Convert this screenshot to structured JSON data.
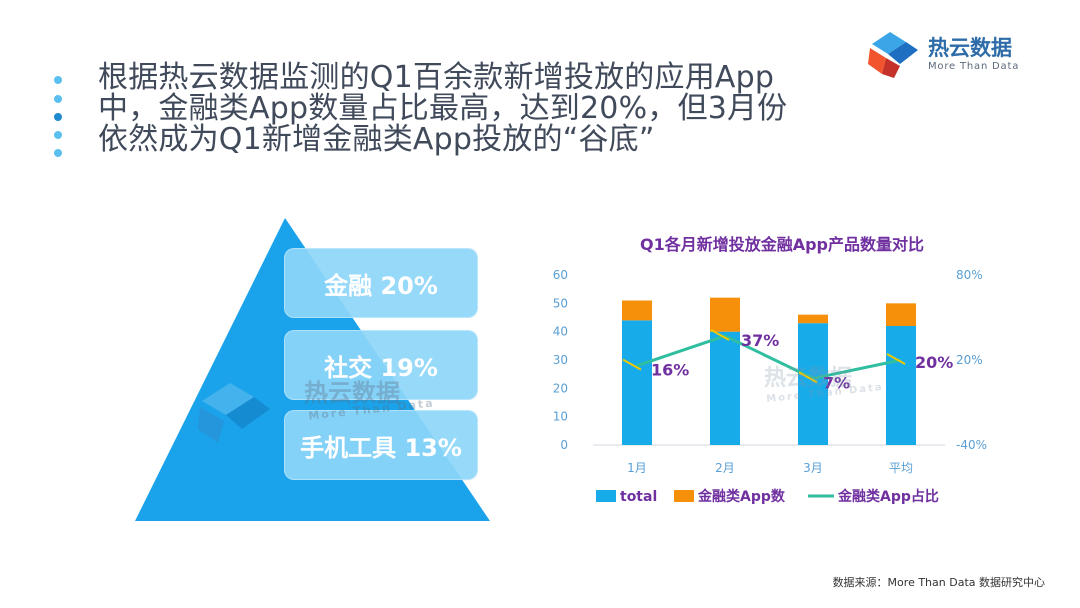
{
  "headline": {
    "lines": [
      "根据热云数据监测的Q1百余款新增投放的应用App",
      "中，金融类App数量占比最高，达到20%，但3月份",
      "依然成为Q1新增金融类App投放的“谷底”"
    ]
  },
  "logo": {
    "name": "热云数据",
    "tagline": "More Than Data"
  },
  "pyramid": {
    "items": [
      {
        "label": "金融 20%"
      },
      {
        "label": "社交 19%"
      },
      {
        "label": "手机工具 13%"
      }
    ],
    "color": "#1aa3ea"
  },
  "watermark": {
    "name": "热云数据",
    "tagline": "More Than Data"
  },
  "chart_data": {
    "type": "bar",
    "title": "Q1各月新增投放金融App产品数量对比",
    "categories": [
      "1月",
      "2月",
      "3月",
      "平均"
    ],
    "series": [
      {
        "name": "total",
        "kind": "bar-stacked",
        "values": [
          44,
          40,
          43,
          42
        ],
        "color": "#18abea"
      },
      {
        "name": "金融类App数",
        "kind": "bar-stacked",
        "values": [
          7,
          12,
          3,
          8
        ],
        "color": "#f6900b"
      },
      {
        "name": "金融类App占比",
        "kind": "line-secondary",
        "values": [
          16,
          37,
          7,
          20
        ],
        "color": "#2fbe9f"
      }
    ],
    "data_labels": [
      "16%",
      "37%",
      "7%",
      "20%"
    ],
    "y_left": {
      "min": 0,
      "max": 60,
      "ticks": [
        "60",
        "50",
        "40",
        "30",
        "20",
        "10",
        "0"
      ]
    },
    "y_right": {
      "min": -40,
      "max": 80,
      "ticks": [
        "80%",
        "20%",
        "-40%"
      ]
    },
    "legend_position": "bottom",
    "colors": {
      "title": "#7030a0",
      "axis": "#5a9fd4",
      "label": "#7030a0",
      "leader": "#f0c800"
    }
  },
  "source": "数据来源：More Than Data 数据研究中心"
}
